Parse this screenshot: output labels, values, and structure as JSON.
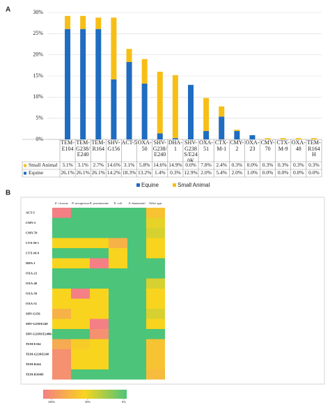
{
  "chart_data": [
    {
      "type": "bar",
      "stacked": true,
      "panel_label": "A",
      "categories": [
        "TEM-E104",
        "TEM-G238/E240",
        "TEM-R164",
        "SHV-G156",
        "ACT-5",
        "OXA-50",
        "SHV-G238/E240",
        "DHA-1",
        "SHV-G238S/E240K",
        "OXA-51",
        "CTX-M-1",
        "CMY-2",
        "OXA-23",
        "CMY-70",
        "CTX-M-9",
        "OXA-48",
        "TEM-R164H"
      ],
      "series": [
        {
          "name": "Equine",
          "color": "#1f6cc0",
          "values": [
            26.1,
            26.1,
            26.1,
            14.2,
            18.3,
            13.2,
            1.4,
            0.3,
            12.9,
            2.0,
            5.4,
            2.0,
            1.0,
            0.0,
            0.0,
            0.0,
            0.0
          ],
          "value_labels": [
            "26.1%",
            "26.1%",
            "26.1%",
            "14.2%",
            "18.3%",
            "13.2%",
            "1.4%",
            "0.3%",
            "12.9%",
            "2.0%",
            "5.4%",
            "2.0%",
            "1.0%",
            "0.0%",
            "0.0%",
            "0.0%",
            "0.0%"
          ]
        },
        {
          "name": "Small Animal",
          "color": "#f7be16",
          "values": [
            3.1,
            3.1,
            2.7,
            14.6,
            3.1,
            5.8,
            14.6,
            14.9,
            0.0,
            7.8,
            2.4,
            0.3,
            0.0,
            0.3,
            0.3,
            0.3,
            0.3
          ],
          "value_labels": [
            "3.1%",
            "3.1%",
            "2.7%",
            "14.6%",
            "3.1%",
            "5.8%",
            "14.6%",
            "14.9%",
            "0.0%",
            "7.8%",
            "2.4%",
            "0.3%",
            "0.0%",
            "0.3%",
            "0.3%",
            "0.3%",
            "0.3%"
          ]
        }
      ],
      "ylim": [
        0,
        30
      ],
      "yticks": [
        {
          "value": 0,
          "label": "0%"
        },
        {
          "value": 5,
          "label": "5%"
        },
        {
          "value": 10,
          "label": "10%"
        },
        {
          "value": 15,
          "label": "15%"
        },
        {
          "value": 20,
          "label": "20%"
        },
        {
          "value": 25,
          "label": "25%"
        },
        {
          "value": 30,
          "label": "30%"
        }
      ],
      "grid": true,
      "legend": "bottom"
    },
    {
      "type": "heatmap",
      "panel_label": "B",
      "x_categories": [
        "E. cloacae",
        "P. aeruginosa",
        "K. pneumoniae",
        "E. coli",
        "A. baumannii",
        "Other spp."
      ],
      "y_categories": [
        "ACT-5",
        "CMY-2",
        "CMY-70",
        "CTX-M-1",
        "CTX-M-9",
        "DHA-1",
        "OXA-23",
        "OXA-48",
        "OXA-50",
        "OXA-51",
        "SHV-G156",
        "SHV-G238/E240",
        "SHV-G238S/E240K",
        "TEM-E104",
        "TEM-G238/E240",
        "TEM-R164",
        "TEM-R164H"
      ],
      "values": [
        [
          100,
          0,
          0,
          0,
          0,
          60
        ],
        [
          0,
          0,
          0,
          0,
          0,
          45
        ],
        [
          0,
          0,
          0,
          0,
          0,
          40
        ],
        [
          50,
          50,
          50,
          70,
          0,
          50
        ],
        [
          0,
          0,
          0,
          50,
          0,
          50
        ],
        [
          50,
          50,
          100,
          50,
          0,
          0
        ],
        [
          0,
          0,
          0,
          0,
          0,
          0
        ],
        [
          0,
          0,
          0,
          0,
          0,
          40
        ],
        [
          50,
          100,
          50,
          0,
          0,
          50
        ],
        [
          50,
          50,
          50,
          0,
          0,
          50
        ],
        [
          70,
          50,
          50,
          0,
          0,
          40
        ],
        [
          50,
          50,
          100,
          0,
          0,
          50
        ],
        [
          0,
          0,
          90,
          0,
          0,
          0
        ],
        [
          75,
          55,
          50,
          0,
          0,
          60
        ],
        [
          90,
          50,
          50,
          0,
          0,
          60
        ],
        [
          90,
          50,
          50,
          0,
          0,
          60
        ],
        [
          90,
          0,
          0,
          0,
          0,
          65
        ]
      ],
      "colorbar": {
        "ticks": [
          {
            "value": 100,
            "label": "100%"
          },
          {
            "value": 50,
            "label": "50%"
          },
          {
            "value": 0,
            "label": "0%"
          }
        ],
        "colors": [
          "#f47f84",
          "#f8d41e",
          "#4cc47a"
        ]
      }
    }
  ]
}
